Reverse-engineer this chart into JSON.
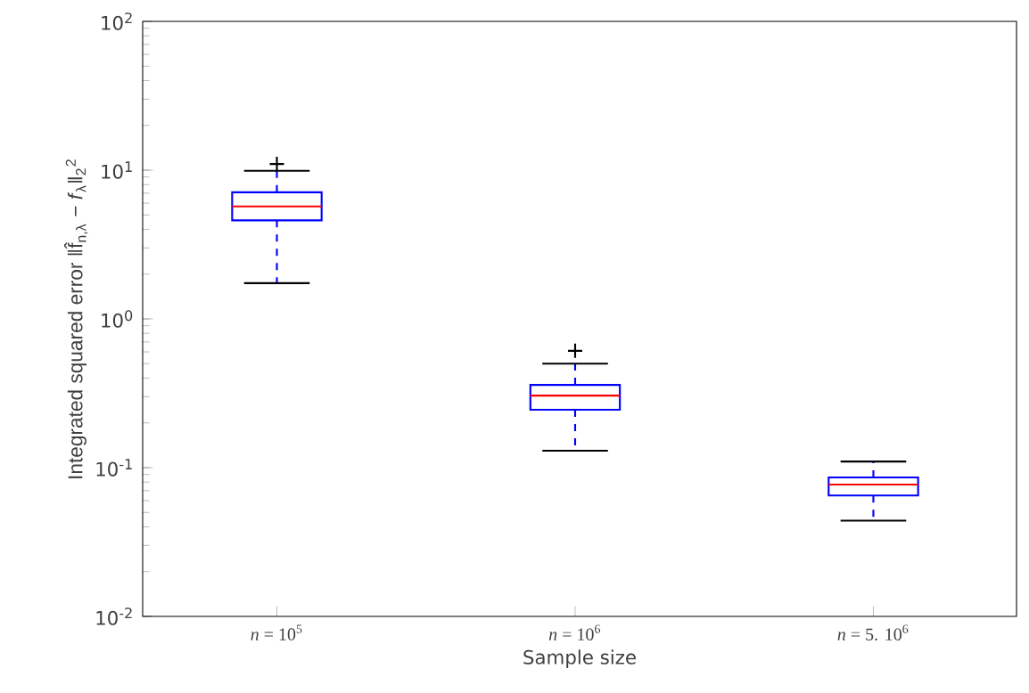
{
  "chart_data": {
    "type": "box",
    "xlabel": "Sample size",
    "ylabel": "Integrated squared error ‖f̂$_{n,λ}$ − *f*$_{λ}$‖$_{2}$$^{2}$",
    "categories": [
      "*n* = 10$^{5}$",
      "*n* = 10$^{6}$",
      "*n* = 5. 10$^{6}$"
    ],
    "series": [
      {
        "color": "#0000ff",
        "boxes": [
          {
            "low": 1.74,
            "q1": 4.6,
            "median": 5.7,
            "q3": 7.1,
            "high": 9.9,
            "outliers": [
              11
            ]
          },
          {
            "low": 0.13,
            "q1": 0.245,
            "median": 0.305,
            "q3": 0.36,
            "high": 0.5,
            "outliers": [
              0.61
            ]
          },
          {
            "low": 0.044,
            "q1": 0.065,
            "median": 0.077,
            "q3": 0.086,
            "high": 0.11
          }
        ]
      }
    ],
    "log": true,
    "ylim": [
      0.01,
      100
    ],
    "yticks": [
      {
        "value": 0.01,
        "label": "10$^{-2}$"
      },
      {
        "value": 0.1,
        "label": "10$^{-1}$"
      },
      {
        "value": 1,
        "label": "10$^{0}$"
      },
      {
        "value": 10,
        "label": "10$^{1}$"
      },
      {
        "value": 100,
        "label": "10$^{2}$"
      }
    ],
    "marker": "cross"
  }
}
